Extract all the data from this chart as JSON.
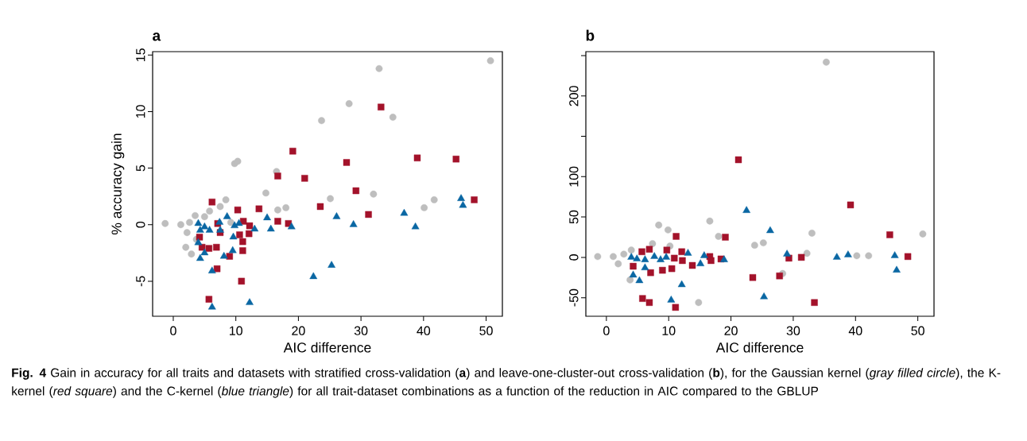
{
  "chart_data": [
    {
      "type": "scatter",
      "title": "a",
      "xlabel": "AIC difference",
      "ylabel": "% accuracy gain",
      "xlim": [
        -3.3,
        52.6
      ],
      "ylim": [
        -8.1,
        15.3
      ],
      "xticks": [
        0,
        10,
        20,
        30,
        40,
        50
      ],
      "yticks": [
        -5,
        0,
        5,
        10,
        15
      ],
      "annotations": [
        "**Fig. 4** Gain in accuracy for all traits and datasets with stratified cross-validation (**a**) and leave-one-cluster-out cross-validation (**b**), for the Gaussian kernel (*gray filled circle*), the K-kernel (*red square*) and the C-kernel (*blue triangle*) for all trait-dataset combinations as a function of the reduction in AIC compared to the GBLUP"
      ],
      "series": [
        {
          "color": "#bebebe",
          "marker": "circle",
          "x": [
            -1.3,
            1.2,
            2.2,
            2.6,
            3.5,
            5.0,
            5.8,
            7.5,
            8.4,
            9.8,
            10.3,
            2.0,
            2.9,
            3.7,
            23.7,
            16.5,
            14.8,
            16.7,
            18.0,
            9.2,
            32.9,
            28.1,
            35.1,
            50.7,
            25.1,
            32.0,
            40.1,
            41.7
          ],
          "values": [
            0.1,
            0.0,
            -0.7,
            0.2,
            0.8,
            0.7,
            1.2,
            1.6,
            2.2,
            5.4,
            5.6,
            -2.0,
            -2.6,
            -1.3,
            9.2,
            4.7,
            2.8,
            1.3,
            1.5,
            0.2,
            13.8,
            10.7,
            9.5,
            14.5,
            2.3,
            2.7,
            1.5,
            2.2
          ]
        },
        {
          "color": "#a3122a",
          "marker": "square",
          "x": [
            6.2,
            10.3,
            13.7,
            19.1,
            16.7,
            21.0,
            23.5,
            16.7,
            18.4,
            11.2,
            12.2,
            12.1,
            10.6,
            11.1,
            11.1,
            9.0,
            6.9,
            5.7,
            4.6,
            7.0,
            10.9,
            5.7,
            7.5,
            4.2,
            7.1,
            33.2,
            27.7,
            39.0,
            45.2,
            29.2,
            31.2,
            48.1
          ],
          "values": [
            2.0,
            1.3,
            1.4,
            6.5,
            4.3,
            4.1,
            1.6,
            0.3,
            0.1,
            0.3,
            -0.1,
            -0.8,
            -0.9,
            -1.5,
            -2.3,
            -2.8,
            -2.0,
            -2.1,
            -2.0,
            -3.9,
            -5.0,
            -6.6,
            -0.7,
            -1.1,
            0.1,
            10.4,
            5.5,
            5.9,
            5.8,
            3.0,
            0.9,
            2.2
          ]
        },
        {
          "color": "#0a67a3",
          "marker": "triangle",
          "x": [
            4.0,
            5.0,
            5.8,
            7.4,
            8.6,
            7.5,
            9.6,
            9.8,
            10.5,
            13.0,
            15.0,
            15.6,
            18.9,
            4.0,
            5.0,
            4.3,
            8.1,
            9.5,
            6.2,
            6.2,
            12.2,
            22.4,
            4.3,
            26.1,
            28.8,
            36.9,
            38.7,
            25.3,
            46.0,
            46.3
          ],
          "values": [
            0.1,
            -0.2,
            -0.5,
            0.2,
            0.7,
            -0.5,
            -1.1,
            -0.1,
            0.1,
            -0.4,
            0.6,
            -0.4,
            -0.2,
            -1.6,
            -2.5,
            -3.0,
            -2.8,
            -2.3,
            -4.1,
            -7.3,
            -6.9,
            -4.6,
            -0.5,
            0.7,
            0.0,
            1.0,
            -0.2,
            -3.6,
            2.3,
            1.7
          ]
        }
      ]
    },
    {
      "type": "scatter",
      "title": "b",
      "xlabel": "AIC difference",
      "xlim": [
        -3.3,
        52.6
      ],
      "ylim": [
        -73,
        255
      ],
      "xticks": [
        0,
        10,
        20,
        30,
        40,
        50
      ],
      "yticks": [
        -50,
        0,
        50,
        100,
        {
          "value": 150,
          "label": null
        },
        200,
        {
          "value": 250,
          "label": null
        }
      ],
      "series": [
        {
          "color": "#bebebe",
          "marker": "circle",
          "x": [
            -1.4,
            1.1,
            1.9,
            2.8,
            3.8,
            4.0,
            7.4,
            8.4,
            9.9,
            10.2,
            14.8,
            16.6,
            18.0,
            23.8,
            25.2,
            28.3,
            32.2,
            33.0,
            35.3,
            40.2,
            42.1,
            50.8
          ],
          "values": [
            1,
            1,
            -8,
            4,
            -28,
            9,
            17,
            40,
            34,
            14,
            -56,
            45,
            26,
            15,
            18,
            -20,
            5,
            30,
            242,
            2,
            2,
            29
          ]
        },
        {
          "color": "#a3122a",
          "marker": "square",
          "x": [
            21.2,
            11.2,
            19.1,
            5.7,
            6.9,
            9.7,
            12.1,
            10.9,
            12.2,
            13.8,
            16.6,
            16.8,
            18.4,
            9.0,
            10.5,
            7.1,
            4.3,
            5.8,
            6.9,
            11.1,
            23.5,
            27.8,
            29.3,
            31.3,
            33.4,
            39.2,
            45.5,
            48.4
          ],
          "values": [
            121,
            26,
            25,
            7,
            10,
            9,
            7,
            -1,
            -4,
            -10,
            1,
            -4,
            -2,
            -16,
            -14,
            -19,
            -11,
            -51,
            -56,
            -62,
            -25,
            -23,
            -1,
            0,
            -56,
            65,
            28,
            1
          ]
        },
        {
          "color": "#0a67a3",
          "marker": "triangle",
          "x": [
            4.0,
            4.9,
            6.2,
            7.7,
            8.7,
            9.6,
            6.2,
            4.3,
            5.3,
            13.1,
            15.7,
            15.1,
            18.9,
            12.1,
            10.4,
            22.5,
            26.3,
            29.0,
            25.3,
            37.0,
            38.8,
            46.3,
            46.6
          ],
          "values": [
            0,
            -2,
            -3,
            1,
            -3,
            0,
            -13,
            -22,
            -29,
            5,
            2,
            -8,
            -3,
            -34,
            -53,
            58,
            33,
            4,
            -49,
            0,
            3,
            2,
            -16
          ]
        }
      ]
    }
  ]
}
